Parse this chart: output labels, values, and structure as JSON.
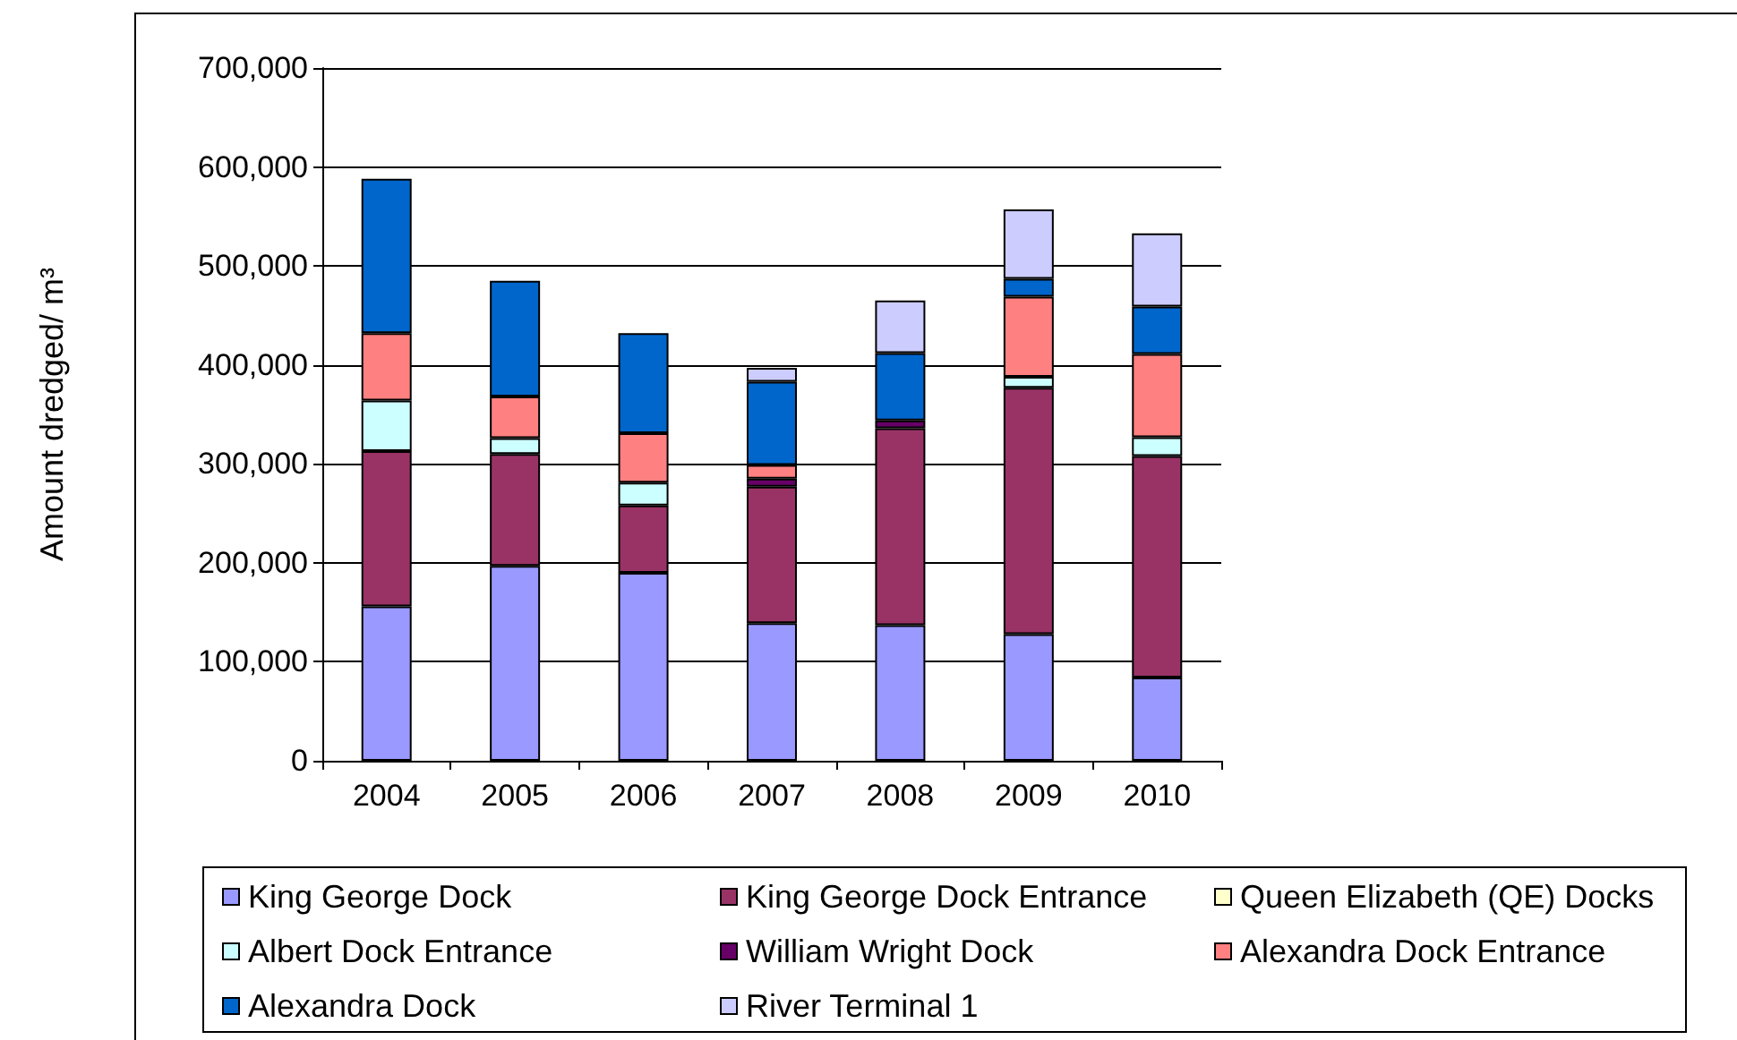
{
  "chart_data": {
    "type": "bar",
    "stacked": true,
    "ylabel": "Amount dredged/ m³",
    "categories": [
      "2004",
      "2005",
      "2006",
      "2007",
      "2008",
      "2009",
      "2010"
    ],
    "series": [
      {
        "name": "King George Dock",
        "color": "#9999ff",
        "values": [
          156000,
          197000,
          190000,
          139000,
          137000,
          128000,
          84000
        ]
      },
      {
        "name": "King George Dock Entrance",
        "color": "#993366",
        "values": [
          157000,
          113000,
          68000,
          138000,
          199000,
          249000,
          224000
        ]
      },
      {
        "name": "Queen Elizabeth (QE) Docks",
        "color": "#ffffcc",
        "values": [
          null,
          null,
          null,
          null,
          null,
          null,
          null
        ]
      },
      {
        "name": "Albert Dock Entrance",
        "color": "#ccffff",
        "values": [
          51000,
          16000,
          23000,
          null,
          null,
          11000,
          19000
        ]
      },
      {
        "name": "William Wright Dock",
        "color": "#660066",
        "values": [
          null,
          null,
          null,
          8000,
          8000,
          null,
          null
        ]
      },
      {
        "name": "Alexandra Dock Entrance",
        "color": "#ff8080",
        "values": [
          68000,
          42000,
          50000,
          14000,
          null,
          81000,
          84000
        ]
      },
      {
        "name": "Alexandra Dock",
        "color": "#0066cc",
        "values": [
          156000,
          117000,
          101000,
          84000,
          68000,
          18000,
          48000
        ]
      },
      {
        "name": "River Terminal 1",
        "color": "#ccccff",
        "values": [
          null,
          null,
          null,
          14000,
          53000,
          70000,
          74000
        ]
      }
    ],
    "ylim": [
      0,
      700000
    ],
    "yticks": [
      {
        "value": 0,
        "label": "0"
      },
      {
        "value": 100000,
        "label": "100,000"
      },
      {
        "value": 200000,
        "label": "200,000"
      },
      {
        "value": 300000,
        "label": "300,000"
      },
      {
        "value": 400000,
        "label": "400,000"
      },
      {
        "value": 500000,
        "label": "500,000"
      },
      {
        "value": 600000,
        "label": "600,000"
      },
      {
        "value": 700000,
        "label": "700,000"
      }
    ],
    "grid": "y",
    "legend": "bottom"
  }
}
